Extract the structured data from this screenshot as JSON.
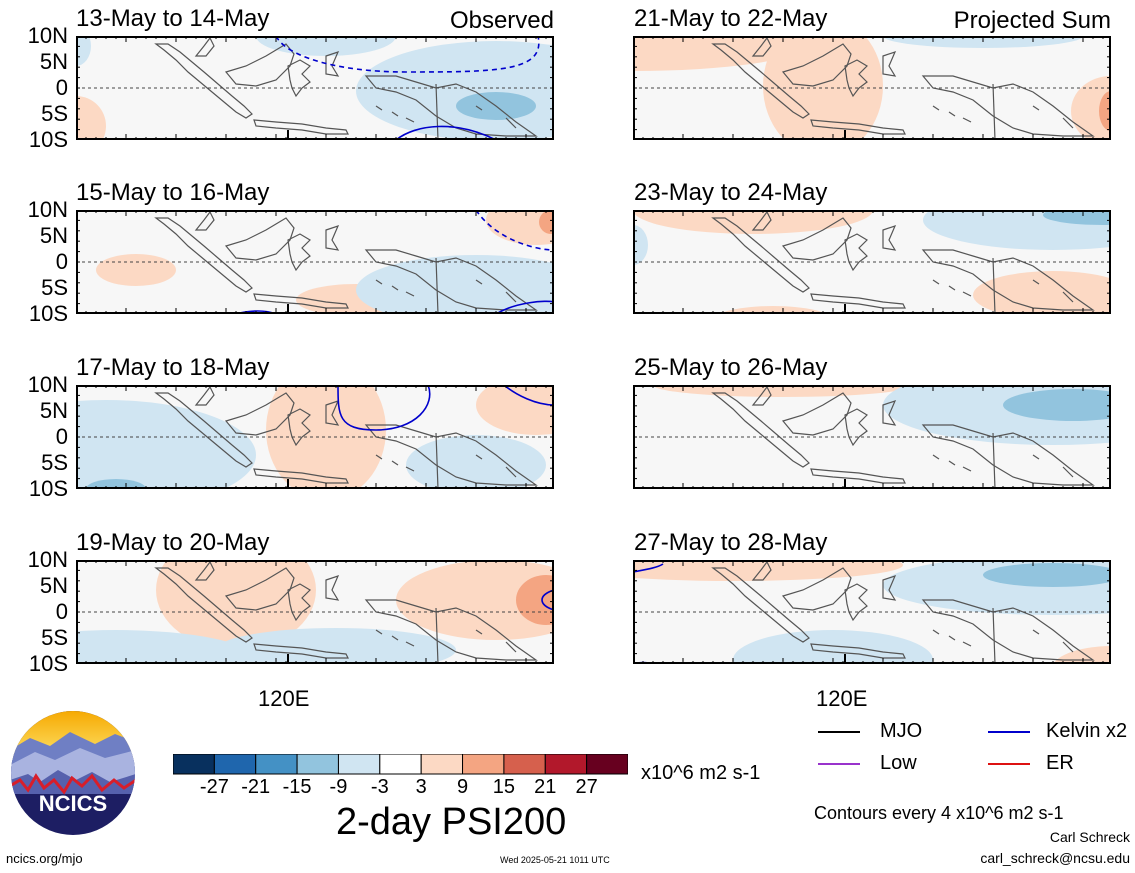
{
  "panels_left": [
    {
      "title": "13-May to 14-May",
      "tag": "Observed"
    },
    {
      "title": "15-May to 16-May",
      "tag": ""
    },
    {
      "title": "17-May to 18-May",
      "tag": ""
    },
    {
      "title": "19-May to 20-May",
      "tag": ""
    }
  ],
  "panels_right": [
    {
      "title": "21-May to 22-May",
      "tag": "Projected Sum"
    },
    {
      "title": "23-May to 24-May",
      "tag": ""
    },
    {
      "title": "25-May to 26-May",
      "tag": ""
    },
    {
      "title": "27-May to 28-May",
      "tag": ""
    }
  ],
  "lat_labels": [
    "10N",
    "5N",
    "0",
    "5S",
    "10S"
  ],
  "lon_label": "120E",
  "colorbar": {
    "colors": [
      "#08305e",
      "#1f66ad",
      "#4491c5",
      "#92c4de",
      "#d0e5f2",
      "#ffffff",
      "#fcd9c4",
      "#f4a582",
      "#d6604d",
      "#b2182b",
      "#67001f"
    ],
    "ticks": [
      "-27",
      "-21",
      "-15",
      "-9",
      "-3",
      "3",
      "9",
      "15",
      "21",
      "27"
    ],
    "units": "x10^6 m2 s-1"
  },
  "main_title": "2-day PSI200",
  "legend": [
    {
      "label": "MJO",
      "color": "#000000"
    },
    {
      "label": "Kelvin x2",
      "color": "#0000cc"
    },
    {
      "label": "Low",
      "color": "#9933cc"
    },
    {
      "label": "ER",
      "color": "#dd1111"
    }
  ],
  "contour_note": "Contours every 4 x10^6 m2 s-1",
  "author": "Carl Schreck",
  "email": "carl_schreck@ncsu.edu",
  "website": "ncics.org/mjo",
  "timestamp": "Wed 2025-05-21 1011 UTC",
  "logo_text": "NCICS"
}
